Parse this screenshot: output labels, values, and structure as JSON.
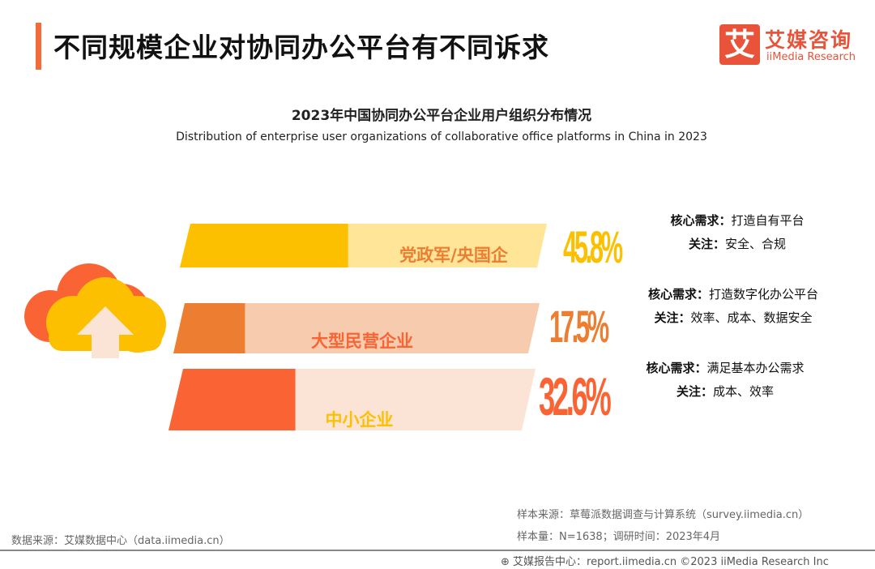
{
  "header": {
    "title": "不同规模企业对协同办公平台有不同诉求",
    "logo_mark": "艾",
    "logo_cn": "艾媒咨询",
    "logo_en": "iiMedia Research"
  },
  "chart_data": {
    "type": "bar",
    "title": "2023年中国协同办公平台企业用户组织分布情况",
    "subtitle": "Distribution of enterprise user organizations of collaborative office platforms in China in 2023",
    "categories": [
      "党政军/央国企",
      "大型民营企业",
      "中小企业"
    ],
    "values": [
      45.8,
      17.5,
      32.6
    ],
    "value_labels": [
      "45.8%",
      "17.5%",
      "32.6%"
    ],
    "unit": "%",
    "colors": {
      "dark": [
        "#fdc000",
        "#ed7d31",
        "#fa6434"
      ],
      "light": [
        "#fee598",
        "#f7cbad",
        "#fbe4d6"
      ],
      "label": [
        "#ed7d31",
        "#fa6434",
        "#fdc000"
      ]
    }
  },
  "needs": [
    {
      "core_label": "核心需求：",
      "core": "打造自有平台",
      "focus_label": "关注：",
      "focus": "安全、合规"
    },
    {
      "core_label": "核心需求：",
      "core": "打造数字化办公平台",
      "focus_label": "关注：",
      "focus": "效率、成本、数据安全"
    },
    {
      "core_label": "核心需求：",
      "core": "满足基本办公需求",
      "focus_label": "关注：",
      "focus": "成本、效率"
    }
  ],
  "footer": {
    "data_source": "数据来源：艾媒数据中心（data.iimedia.cn）",
    "sample_source": "样本来源：草莓派数据调查与计算系统（survey.iimedia.cn）",
    "sample_size": "样本量：N=1638；调研时间：2023年4月",
    "report": "艾媒报告中心：report.iimedia.cn   ©2023  iiMedia Research  Inc"
  }
}
